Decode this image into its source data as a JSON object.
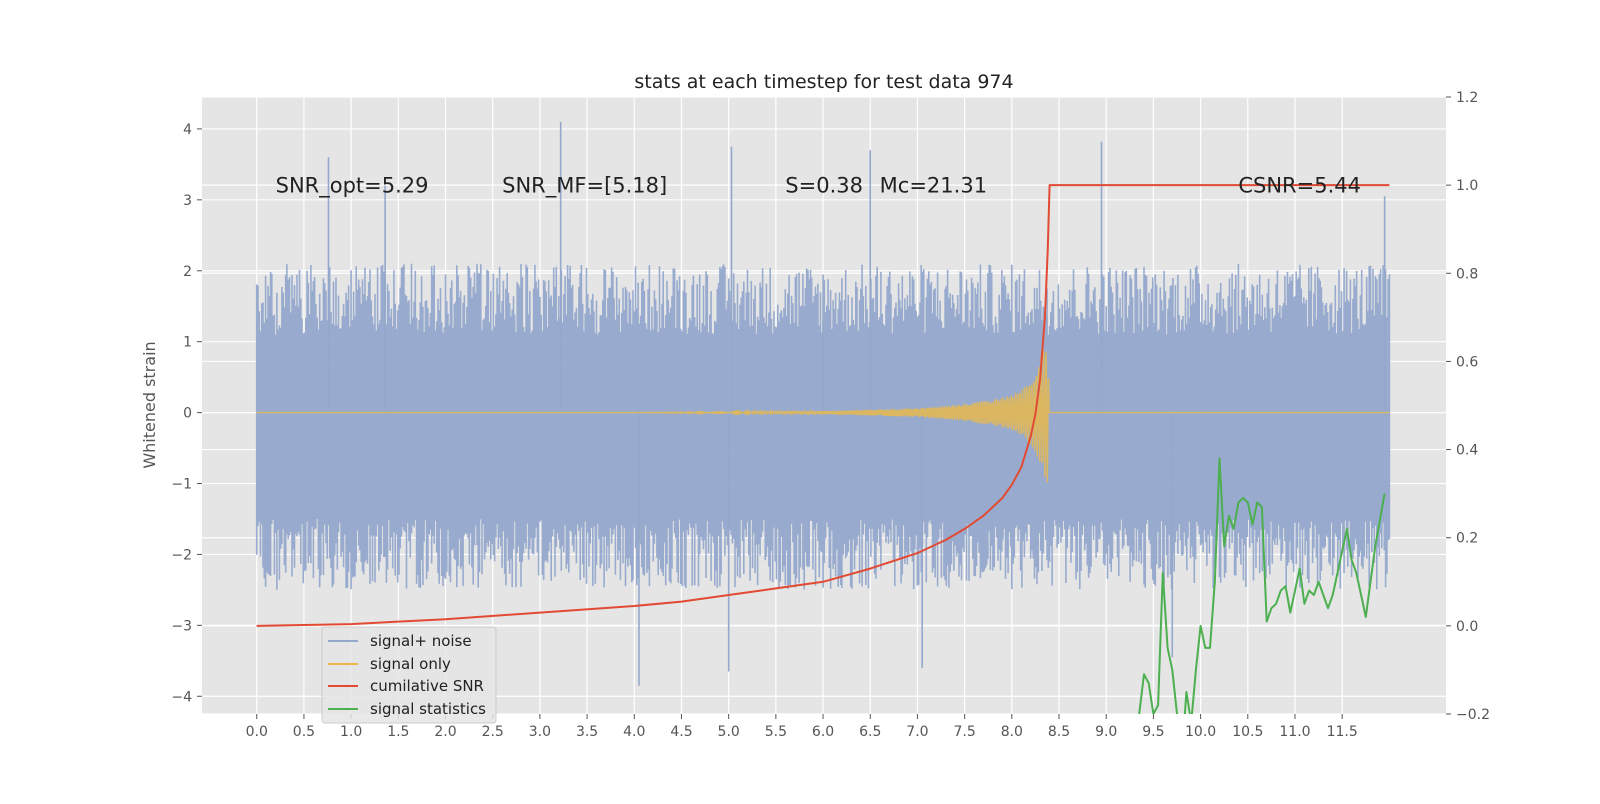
{
  "chart_data": {
    "type": "line",
    "title": "stats at each timestep for test data 974",
    "ylabel": "Whitened strain",
    "ylabel_right": "",
    "xlim": [
      -0.58,
      12.6
    ],
    "ylim": [
      -4.25,
      4.45
    ],
    "ylim_right": [
      -0.2,
      1.2
    ],
    "x_ticks": [
      "0.0",
      "0.5",
      "1.0",
      "1.5",
      "2.0",
      "2.5",
      "3.0",
      "3.5",
      "4.0",
      "4.5",
      "5.0",
      "5.5",
      "6.0",
      "6.5",
      "7.0",
      "7.5",
      "8.0",
      "8.5",
      "9.0",
      "9.5",
      "10.0",
      "10.5",
      "11.0",
      "11.5"
    ],
    "y_ticks": [
      "−4",
      "−3",
      "−2",
      "−1",
      "0",
      "1",
      "2",
      "3",
      "4"
    ],
    "y_ticks_right": [
      "−0.2",
      "0.0",
      "0.2",
      "0.4",
      "0.6",
      "0.8",
      "1.0",
      "1.2"
    ],
    "grid": true,
    "legend_position": "lower-left",
    "annotations": [
      {
        "text": "SNR_opt=5.29",
        "x": 0.2,
        "y": 3.2
      },
      {
        "text": "SNR_MF=[5.18]",
        "x": 2.6,
        "y": 3.2
      },
      {
        "text": "S=0.38",
        "x": 5.6,
        "y": 3.2
      },
      {
        "text": "Mc=21.31",
        "x": 6.6,
        "y": 3.2
      },
      {
        "text": "CSNR=5.44",
        "x": 10.4,
        "y": 3.2
      }
    ],
    "series": [
      {
        "name": "signal+ noise",
        "axis": "left",
        "color": "#94a8cc",
        "style": "noise",
        "x_range": [
          0.0,
          12.0
        ],
        "typical_range": [
          -1.5,
          2.0
        ],
        "spikes": [
          [
            0.76,
            3.6
          ],
          [
            1.36,
            3.2
          ],
          [
            3.22,
            4.1
          ],
          [
            5.03,
            3.75
          ],
          [
            6.5,
            3.7
          ],
          [
            8.95,
            3.82
          ],
          [
            11.95,
            3.05
          ],
          [
            4.05,
            -3.85
          ],
          [
            5.0,
            -3.65
          ],
          [
            7.05,
            -3.6
          ],
          [
            9.7,
            -3.45
          ],
          [
            6.0,
            1.3
          ]
        ]
      },
      {
        "name": "signal only",
        "axis": "left",
        "color": "#e8b84f",
        "style": "chirp",
        "x": [
          0.0,
          4.0,
          6.0,
          7.0,
          7.5,
          7.8,
          8.0,
          8.1,
          8.2,
          8.25,
          8.3,
          8.35,
          8.38,
          8.4,
          12.0
        ],
        "envelope": [
          0.0,
          0.0,
          0.02,
          0.06,
          0.12,
          0.18,
          0.25,
          0.32,
          0.45,
          0.55,
          0.75,
          0.95,
          1.0,
          0.0,
          0.0
        ]
      },
      {
        "name": "cumilative SNR",
        "axis": "right",
        "color": "#e24a33",
        "x": [
          0.0,
          1.0,
          2.0,
          3.0,
          4.0,
          4.5,
          5.0,
          5.5,
          6.0,
          6.5,
          7.0,
          7.3,
          7.5,
          7.7,
          7.9,
          8.0,
          8.1,
          8.2,
          8.25,
          8.3,
          8.35,
          8.38,
          8.4,
          9.0,
          10.0,
          11.0,
          12.0
        ],
        "values": [
          0.0,
          0.004,
          0.015,
          0.03,
          0.045,
          0.055,
          0.07,
          0.085,
          0.1,
          0.13,
          0.165,
          0.195,
          0.22,
          0.25,
          0.29,
          0.32,
          0.36,
          0.43,
          0.48,
          0.56,
          0.7,
          0.85,
          1.0,
          1.0,
          1.0,
          1.0,
          1.0
        ]
      },
      {
        "name": "signal statistics",
        "axis": "right",
        "color": "#4caf50",
        "x": [
          9.35,
          9.4,
          9.45,
          9.5,
          9.55,
          9.6,
          9.65,
          9.7,
          9.75,
          9.8,
          9.85,
          9.9,
          9.95,
          10.0,
          10.05,
          10.1,
          10.15,
          10.2,
          10.25,
          10.3,
          10.35,
          10.4,
          10.45,
          10.5,
          10.55,
          10.6,
          10.65,
          10.7,
          10.75,
          10.8,
          10.85,
          10.9,
          10.95,
          11.0,
          11.05,
          11.1,
          11.15,
          11.2,
          11.25,
          11.3,
          11.35,
          11.4,
          11.45,
          11.5,
          11.55,
          11.6,
          11.65,
          11.7,
          11.75,
          11.8,
          11.85,
          11.9,
          11.95
        ],
        "values": [
          -0.2,
          -0.11,
          -0.13,
          -0.2,
          -0.18,
          0.12,
          -0.05,
          -0.1,
          -0.2,
          -0.3,
          -0.15,
          -0.22,
          -0.1,
          0.0,
          -0.05,
          -0.05,
          0.1,
          0.38,
          0.18,
          0.25,
          0.22,
          0.28,
          0.29,
          0.28,
          0.23,
          0.28,
          0.27,
          0.01,
          0.04,
          0.05,
          0.08,
          0.09,
          0.03,
          0.08,
          0.13,
          0.05,
          0.08,
          0.07,
          0.1,
          0.07,
          0.04,
          0.07,
          0.12,
          0.17,
          0.22,
          0.15,
          0.12,
          0.07,
          0.02,
          0.1,
          0.18,
          0.24,
          0.3
        ]
      }
    ]
  }
}
